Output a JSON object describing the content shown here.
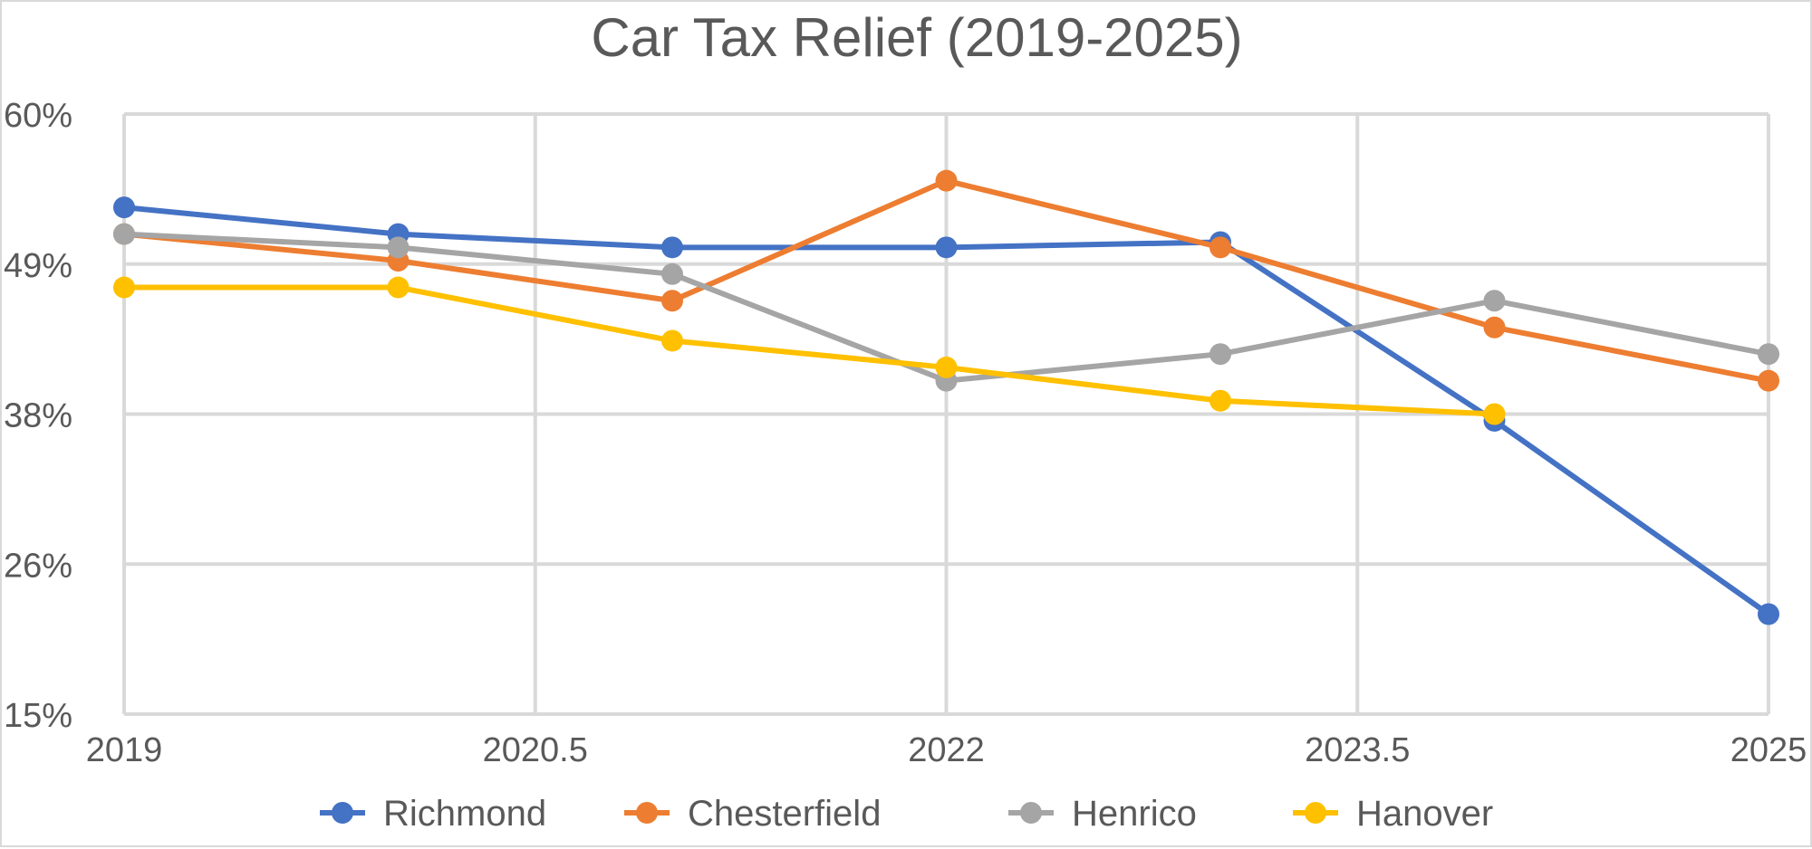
{
  "chart_data": {
    "type": "line",
    "title": "Car Tax Relief (2019-2025)",
    "xlabel": "",
    "ylabel": "",
    "xlim": [
      2019,
      2025
    ],
    "ylim": [
      15,
      60
    ],
    "x_ticks": [
      2019,
      2020.5,
      2022,
      2023.5,
      2025
    ],
    "x_tick_labels": [
      "2019",
      "2020.5",
      "2022",
      "2023.5",
      "2025"
    ],
    "y_ticks": [
      15,
      26.25,
      37.5,
      48.75,
      60
    ],
    "y_tick_labels": [
      "15%",
      "26%",
      "38%",
      "49%",
      "60%"
    ],
    "grid": true,
    "legend_position": "bottom",
    "x": [
      2019,
      2020,
      2021,
      2022,
      2023,
      2024,
      2025
    ],
    "series": [
      {
        "name": "Richmond",
        "color": "#4472C4",
        "values": [
          53,
          51,
          50,
          50,
          50.4,
          37,
          22.5
        ]
      },
      {
        "name": "Chesterfield",
        "color": "#ED7D31",
        "values": [
          51,
          49,
          46,
          55,
          50,
          44,
          40
        ]
      },
      {
        "name": "Henrico",
        "color": "#A5A5A5",
        "values": [
          51,
          50,
          48,
          40,
          42,
          46,
          42
        ]
      },
      {
        "name": "Hanover",
        "color": "#FFC000",
        "values": [
          47,
          47,
          43,
          41,
          38.5,
          37.5,
          null
        ]
      }
    ]
  }
}
